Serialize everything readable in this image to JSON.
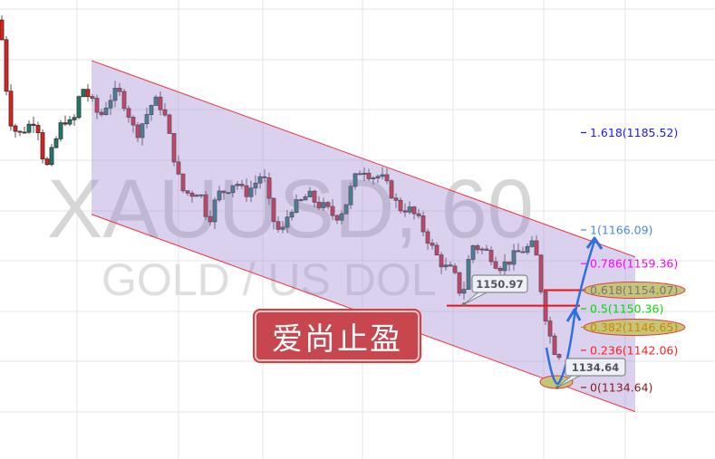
{
  "chart_data": {
    "type": "candlestick",
    "symbol_watermark": "XAUUSD, 60",
    "description_watermark": "GOLD / US DOL",
    "ylim": [
      1120.35,
      1212.0
    ],
    "grid": true,
    "approx_closes": [
      1208,
      1188.5,
      1184.9,
      1186.7,
      1188.5,
      1177.7,
      1183.1,
      1188.5,
      1186.7,
      1194.8,
      1192.1,
      1188.5,
      1192.1,
      1193.9,
      1190.3,
      1184.9,
      1188.5,
      1192.1,
      1190.3,
      1182.2,
      1174.1,
      1173.2,
      1174.1,
      1167.7,
      1173.2,
      1174.1,
      1175.9,
      1173.2,
      1175,
      1177.7,
      1168.6,
      1165.0,
      1170.4,
      1171.3,
      1173.2,
      1171.3,
      1170.4,
      1168.6,
      1170.4,
      1175.9,
      1178.6,
      1176.8,
      1176.8,
      1174.1,
      1170.4,
      1170.4,
      1168.6,
      1165.0,
      1161.4,
      1158.7,
      1157.8,
      1152.4,
      1163.2,
      1162.3,
      1161.4,
      1158.7,
      1159.6,
      1161.4,
      1162.3,
      1163.2,
      1150.5,
      1142.4,
      1141
    ],
    "channel": {
      "upper": [
        1199.9,
        1160.7
      ],
      "lower": [
        1169.2,
        1129.8
      ],
      "fill": "#d9d0ec",
      "line_color": "#f0303a"
    },
    "fib_levels": [
      {
        "label": "1.618(1185.52)",
        "price": 1185.52,
        "color": "#1a1aff"
      },
      {
        "label": "1(1166.09)",
        "price": 1166.09,
        "color": "#4a86e8"
      },
      {
        "label": "0.786(1159.36)",
        "price": 1159.36,
        "color": "#ff00ff"
      },
      {
        "label": "0.618(1154.07)",
        "price": 1154.07,
        "color": "#777777",
        "highlighted": true
      },
      {
        "label": "0.5(1150.36)",
        "price": 1150.36,
        "color": "#00dd00"
      },
      {
        "label": "0.382(1146.65)",
        "price": 1146.65,
        "color": "#cc8800",
        "highlighted": true
      },
      {
        "label": "0.236(1142.06)",
        "price": 1142.06,
        "color": "#ff2020"
      },
      {
        "label": "0(1134.64)",
        "price": 1134.64,
        "color": "#8b1a1a"
      }
    ],
    "horizontal_lines": [
      {
        "price": 1150.97,
        "label": "1150.97",
        "color": "#ee1111"
      },
      {
        "price": 1154.07,
        "color": "#ee1111"
      }
    ],
    "callouts": [
      {
        "label": "1150.97",
        "price": 1150.97
      },
      {
        "label": "1134.64",
        "price": 1134.64
      }
    ],
    "colors": {
      "up": "#13806f",
      "down": "#e0201e",
      "arrow": "#2f6fe0",
      "ellipse": "#c6c479"
    }
  },
  "stamp": {
    "text": "爱尚止盈",
    "color": "#c8474f"
  }
}
